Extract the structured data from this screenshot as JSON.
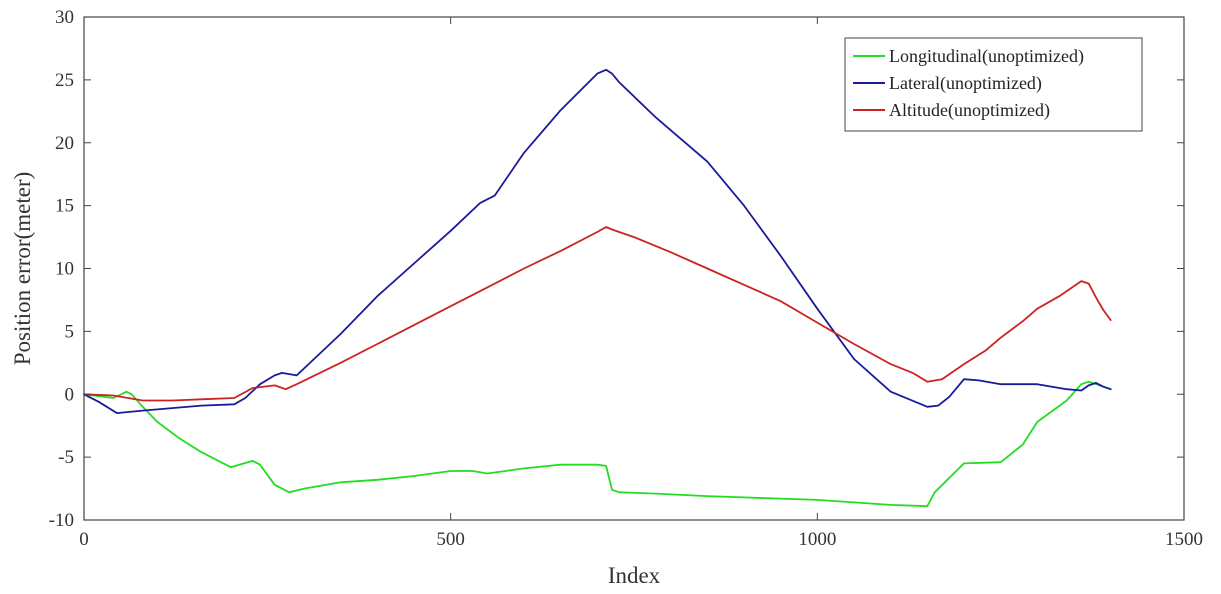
{
  "chart_data": {
    "type": "line",
    "title": "",
    "xlabel": "Index",
    "ylabel": "Position error(meter)",
    "xlim": [
      0,
      1500
    ],
    "ylim": [
      -10,
      30
    ],
    "xticks": [
      0,
      500,
      1000,
      1500
    ],
    "yticks": [
      -10,
      -5,
      0,
      5,
      10,
      15,
      20,
      25,
      30
    ],
    "grid": false,
    "legend_position": "top-right",
    "series": [
      {
        "name": "Longitudinal(unoptimized)",
        "color": "#22dd22",
        "x": [
          0,
          40,
          58,
          65,
          80,
          100,
          130,
          160,
          200,
          230,
          240,
          260,
          280,
          300,
          350,
          400,
          450,
          500,
          530,
          550,
          600,
          650,
          700,
          712,
          720,
          730,
          780,
          850,
          900,
          1000,
          1050,
          1100,
          1150,
          1160,
          1200,
          1250,
          1280,
          1300,
          1340,
          1360,
          1370,
          1385,
          1400
        ],
        "values": [
          0,
          -0.3,
          0.2,
          0,
          -1.0,
          -2.2,
          -3.5,
          -4.6,
          -5.8,
          -5.3,
          -5.6,
          -7.2,
          -7.8,
          -7.5,
          -7.0,
          -6.8,
          -6.5,
          -6.1,
          -6.1,
          -6.3,
          -5.9,
          -5.6,
          -5.6,
          -5.7,
          -7.6,
          -7.8,
          -7.9,
          -8.1,
          -8.2,
          -8.4,
          -8.6,
          -8.8,
          -8.9,
          -7.8,
          -5.5,
          -5.4,
          -4.0,
          -2.2,
          -0.5,
          0.8,
          1.0,
          0.7,
          0.4
        ]
      },
      {
        "name": "Lateral(unoptimized)",
        "color": "#1a1a9a",
        "x": [
          0,
          20,
          45,
          80,
          120,
          160,
          205,
          220,
          240,
          260,
          270,
          290,
          350,
          400,
          450,
          500,
          540,
          560,
          600,
          650,
          700,
          712,
          720,
          730,
          780,
          850,
          900,
          950,
          1000,
          1050,
          1100,
          1150,
          1165,
          1180,
          1200,
          1220,
          1250,
          1300,
          1340,
          1360,
          1370,
          1380,
          1390,
          1400
        ],
        "values": [
          0,
          -0.6,
          -1.5,
          -1.3,
          -1.1,
          -0.9,
          -0.8,
          -0.3,
          0.8,
          1.5,
          1.7,
          1.5,
          4.8,
          7.8,
          10.4,
          13.0,
          15.2,
          15.8,
          19.2,
          22.6,
          25.5,
          25.8,
          25.5,
          24.8,
          22.0,
          18.5,
          15.0,
          11.0,
          6.8,
          2.8,
          0.2,
          -1.0,
          -0.9,
          -0.2,
          1.2,
          1.1,
          0.8,
          0.8,
          0.4,
          0.3,
          0.7,
          0.9,
          0.6,
          0.4
        ]
      },
      {
        "name": "Altitude(unoptimized)",
        "color": "#cc2222",
        "x": [
          0,
          40,
          80,
          120,
          160,
          205,
          230,
          260,
          275,
          290,
          350,
          400,
          450,
          500,
          550,
          600,
          650,
          700,
          712,
          720,
          750,
          800,
          850,
          900,
          950,
          1000,
          1050,
          1100,
          1130,
          1150,
          1170,
          1200,
          1230,
          1250,
          1280,
          1300,
          1330,
          1350,
          1360,
          1370,
          1380,
          1390,
          1400
        ],
        "values": [
          0,
          -0.1,
          -0.5,
          -0.5,
          -0.4,
          -0.3,
          0.5,
          0.7,
          0.4,
          0.8,
          2.5,
          4.0,
          5.5,
          7.0,
          8.5,
          10.0,
          11.4,
          12.9,
          13.3,
          13.1,
          12.5,
          11.3,
          10.0,
          8.7,
          7.4,
          5.7,
          4.0,
          2.4,
          1.7,
          1.0,
          1.2,
          2.4,
          3.5,
          4.5,
          5.8,
          6.8,
          7.8,
          8.6,
          9.0,
          8.8,
          7.7,
          6.7,
          5.9
        ]
      }
    ]
  }
}
